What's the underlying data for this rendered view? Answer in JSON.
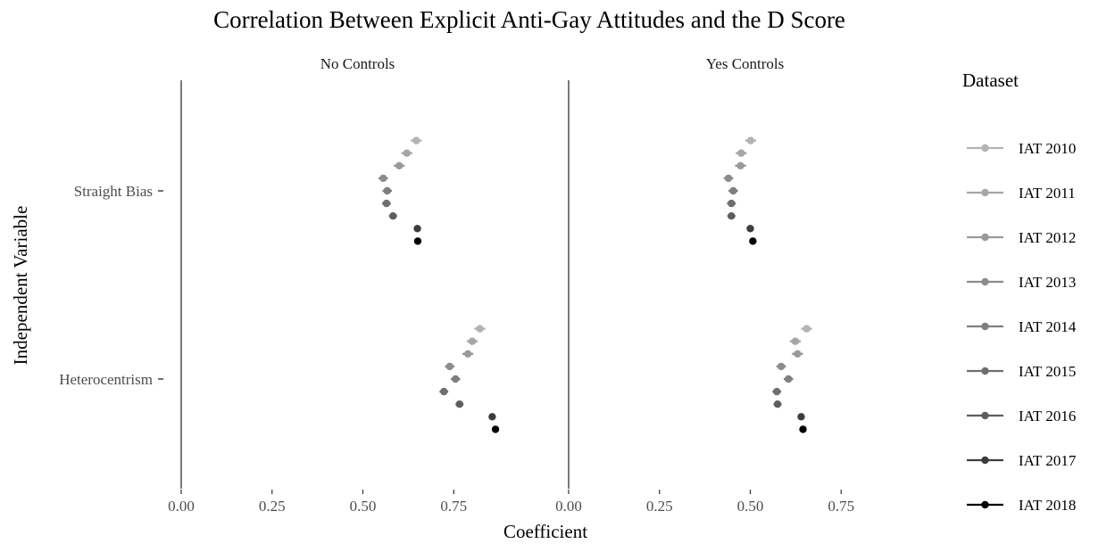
{
  "title": "Correlation Between Explicit Anti-Gay Attitudes and the D Score",
  "chart_data": {
    "type": "scatter",
    "title": "Correlation Between Explicit Anti-Gay Attitudes and the D Score",
    "xlabel": "Coefficient",
    "ylabel": "Independent Variable",
    "xlim": [
      0,
      1.0
    ],
    "xticks": [
      0.0,
      0.25,
      0.5,
      0.75
    ],
    "xtick_labels": [
      "0.00",
      "0.25",
      "0.50",
      "0.75"
    ],
    "facets": [
      "No Controls",
      "Yes Controls"
    ],
    "categories": [
      "Straight Bias",
      "Heterocentrism"
    ],
    "legend_title": "Dataset",
    "legend_position": "right",
    "grid": false,
    "series": [
      {
        "name": "IAT 2010",
        "color": "#b3b3b3",
        "values": {
          "No Controls": [
            0.647,
            0.822
          ],
          "Yes Controls": [
            0.501,
            0.655
          ]
        },
        "error": 0.015
      },
      {
        "name": "IAT 2011",
        "color": "#a6a6a6",
        "values": {
          "No Controls": [
            0.621,
            0.801
          ],
          "Yes Controls": [
            0.475,
            0.624
          ]
        },
        "error": 0.015
      },
      {
        "name": "IAT 2012",
        "color": "#999999",
        "values": {
          "No Controls": [
            0.6,
            0.789
          ],
          "Yes Controls": [
            0.473,
            0.63
          ]
        },
        "error": 0.015
      },
      {
        "name": "IAT 2013",
        "color": "#8c8c8c",
        "values": {
          "No Controls": [
            0.556,
            0.739
          ],
          "Yes Controls": [
            0.44,
            0.585
          ]
        },
        "error": 0.013
      },
      {
        "name": "IAT 2014",
        "color": "#7f7f7f",
        "values": {
          "No Controls": [
            0.567,
            0.755
          ],
          "Yes Controls": [
            0.453,
            0.605
          ]
        },
        "error": 0.013
      },
      {
        "name": "IAT 2015",
        "color": "#6e6e6e",
        "values": {
          "No Controls": [
            0.565,
            0.723
          ],
          "Yes Controls": [
            0.448,
            0.573
          ]
        },
        "error": 0.012
      },
      {
        "name": "IAT 2016",
        "color": "#5e5e5e",
        "values": {
          "No Controls": [
            0.583,
            0.766
          ],
          "Yes Controls": [
            0.448,
            0.575
          ]
        },
        "error": 0.011
      },
      {
        "name": "IAT 2017",
        "color": "#3d3d3d",
        "values": {
          "No Controls": [
            0.65,
            0.856
          ],
          "Yes Controls": [
            0.5,
            0.64
          ]
        },
        "error": 0.008
      },
      {
        "name": "IAT 2018",
        "color": "#000000",
        "values": {
          "No Controls": [
            0.651,
            0.865
          ],
          "Yes Controls": [
            0.507,
            0.645
          ]
        },
        "error": 0.008
      }
    ]
  }
}
